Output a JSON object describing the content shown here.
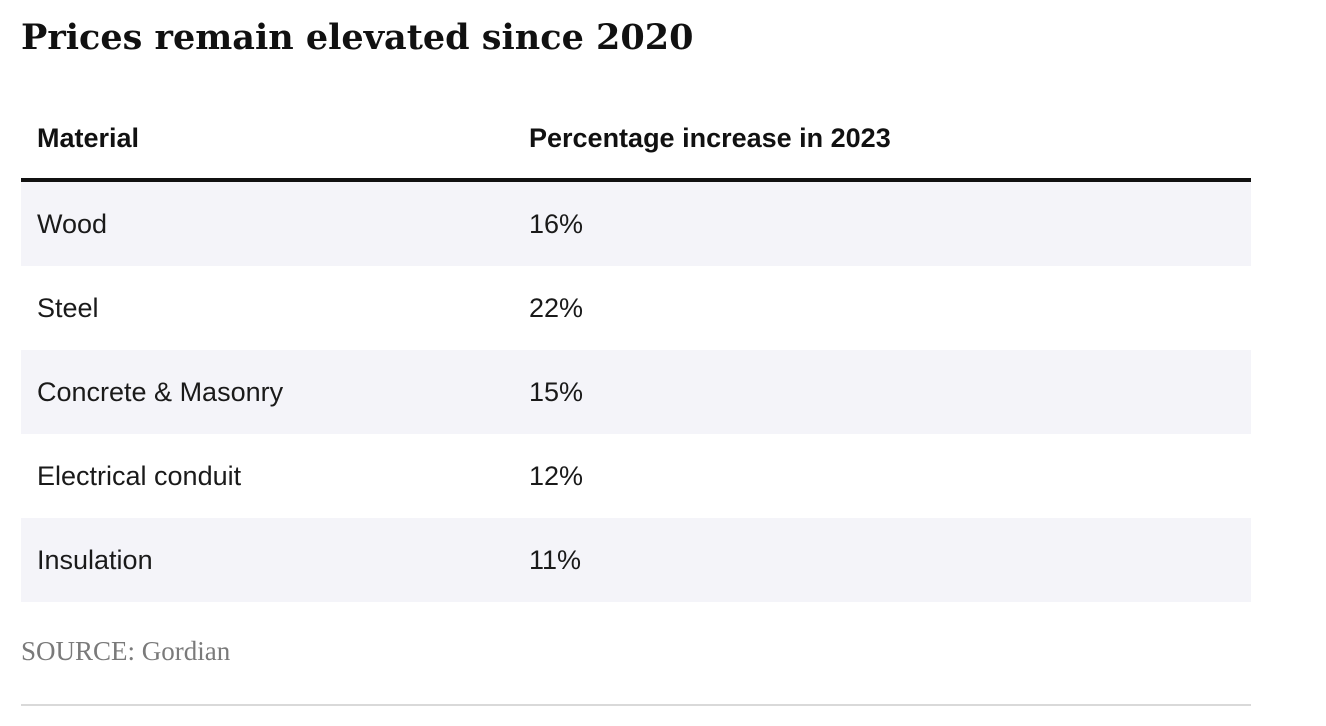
{
  "chart_data": {
    "type": "table",
    "title": "Prices remain elevated since 2020",
    "columns": [
      "Material",
      "Percentage increase in 2023"
    ],
    "rows": [
      {
        "material": "Wood",
        "increase": "16%"
      },
      {
        "material": "Steel",
        "increase": "22%"
      },
      {
        "material": "Concrete & Masonry",
        "increase": "15%"
      },
      {
        "material": "Electrical conduit",
        "increase": "12%"
      },
      {
        "material": "Insulation",
        "increase": "11%"
      }
    ],
    "source": "SOURCE: Gordian"
  },
  "colors": {
    "stripe": "#f4f4f9",
    "header_rule": "#111111",
    "source_text": "#7a7a7a"
  }
}
